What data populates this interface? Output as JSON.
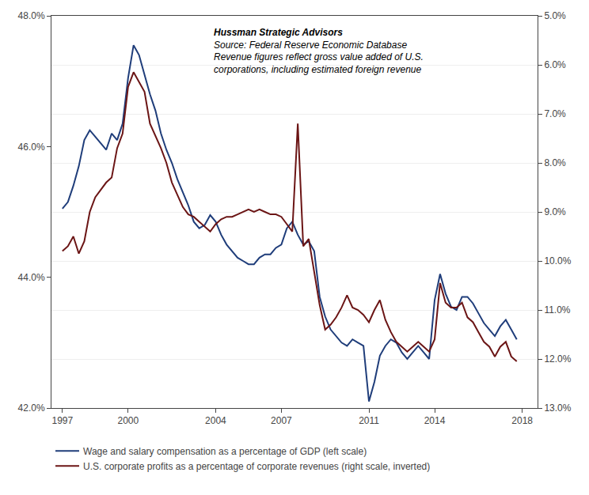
{
  "chart_data": {
    "type": "line",
    "annotations": [
      "Hussman Strategic Advisors",
      "Source: Federal Reserve Economic Database",
      "Revenue figures reflect gross value added of U.S.",
      "corporations, including estimated foreign revenue"
    ],
    "x": [
      1997.0,
      1997.25,
      1997.5,
      1997.75,
      1998.0,
      1998.25,
      1998.5,
      1998.75,
      1999.0,
      1999.25,
      1999.5,
      1999.75,
      2000.0,
      2000.25,
      2000.5,
      2000.75,
      2001.0,
      2001.25,
      2001.5,
      2001.75,
      2002.0,
      2002.25,
      2002.5,
      2002.75,
      2003.0,
      2003.25,
      2003.5,
      2003.75,
      2004.0,
      2004.25,
      2004.5,
      2004.75,
      2005.0,
      2005.25,
      2005.5,
      2005.75,
      2006.0,
      2006.25,
      2006.5,
      2006.75,
      2007.0,
      2007.25,
      2007.5,
      2007.75,
      2008.0,
      2008.25,
      2008.5,
      2008.75,
      2009.0,
      2009.25,
      2009.5,
      2009.75,
      2010.0,
      2010.25,
      2010.5,
      2010.75,
      2011.0,
      2011.25,
      2011.5,
      2011.75,
      2012.0,
      2012.25,
      2012.5,
      2012.75,
      2013.0,
      2013.25,
      2013.5,
      2013.75,
      2014.0,
      2014.25,
      2014.5,
      2014.75,
      2015.0,
      2015.25,
      2015.5,
      2015.75,
      2016.0,
      2016.25,
      2016.5,
      2016.75,
      2017.0,
      2017.25,
      2017.5,
      2017.75
    ],
    "series": [
      {
        "name": "Wage and salary compensation as a percentage of GDP (left scale)",
        "color": "#1f3d7a",
        "values": [
          45.05,
          45.15,
          45.4,
          45.7,
          46.1,
          46.25,
          46.15,
          46.05,
          45.95,
          46.2,
          46.1,
          46.35,
          47.05,
          47.55,
          47.4,
          47.1,
          46.8,
          46.55,
          46.2,
          45.95,
          45.75,
          45.5,
          45.3,
          45.1,
          44.85,
          44.75,
          44.8,
          44.95,
          44.85,
          44.65,
          44.5,
          44.4,
          44.3,
          44.25,
          44.2,
          44.2,
          44.3,
          44.35,
          44.35,
          44.45,
          44.5,
          44.75,
          44.85,
          44.65,
          44.5,
          44.55,
          44.4,
          43.7,
          43.4,
          43.2,
          43.1,
          43.0,
          42.95,
          43.05,
          43.0,
          42.95,
          42.1,
          42.4,
          42.8,
          42.95,
          43.05,
          43.0,
          42.85,
          42.75,
          42.85,
          42.95,
          42.85,
          42.75,
          43.65,
          44.05,
          43.75,
          43.55,
          43.5,
          43.7,
          43.7,
          43.6,
          43.45,
          43.3,
          43.2,
          43.1,
          43.25,
          43.35,
          43.2,
          43.05
        ]
      },
      {
        "name": "U.S. corporate profits as a percentage of corporate revenues (right scale, inverted)",
        "color": "#6b1515",
        "axis": "y2",
        "values": [
          9.8,
          9.7,
          9.5,
          9.85,
          9.6,
          9.0,
          8.7,
          8.55,
          8.4,
          8.3,
          7.7,
          7.4,
          6.45,
          6.15,
          6.35,
          6.55,
          7.2,
          7.45,
          7.7,
          8.0,
          8.4,
          8.65,
          8.9,
          9.05,
          9.1,
          9.2,
          9.3,
          9.4,
          9.25,
          9.15,
          9.1,
          9.1,
          9.05,
          9.0,
          8.95,
          9.0,
          8.95,
          9.0,
          9.05,
          9.05,
          9.1,
          9.25,
          9.4,
          7.2,
          9.7,
          9.55,
          10.2,
          10.9,
          11.4,
          11.3,
          11.15,
          10.95,
          10.7,
          10.95,
          11.0,
          11.1,
          11.25,
          11.0,
          10.8,
          11.2,
          11.45,
          11.65,
          11.75,
          11.85,
          11.75,
          11.65,
          11.75,
          11.85,
          11.6,
          10.45,
          10.85,
          10.95,
          10.95,
          10.85,
          11.15,
          11.25,
          11.45,
          11.65,
          11.75,
          11.95,
          11.75,
          11.65,
          11.95,
          12.05
        ]
      }
    ],
    "xlim": [
      1996.5,
      2018.7
    ],
    "xticks": [
      1997,
      2000,
      2004,
      2007,
      2011,
      2014,
      2018
    ],
    "ylim": [
      42.0,
      48.0
    ],
    "yticks": [
      {
        "value": 42.0,
        "label": "42.0%"
      },
      {
        "value": 44.0,
        "label": "44.0%"
      },
      {
        "value": 46.0,
        "label": "46.0%"
      },
      {
        "value": 48.0,
        "label": "48.0%"
      }
    ],
    "y2lim": [
      13.0,
      5.0
    ],
    "y2ticks": [
      {
        "value": 5.0,
        "label": "5.0%"
      },
      {
        "value": 6.0,
        "label": "6.0%"
      },
      {
        "value": 7.0,
        "label": "7.0%"
      },
      {
        "value": 8.0,
        "label": "8.0%"
      },
      {
        "value": 9.0,
        "label": "9.0%"
      },
      {
        "value": 10.0,
        "label": "10.0%"
      },
      {
        "value": 11.0,
        "label": "11.0%"
      },
      {
        "value": 12.0,
        "label": "12.0%"
      },
      {
        "value": 13.0,
        "label": "13.0%"
      }
    ],
    "grid": true,
    "legend": "lower left"
  }
}
